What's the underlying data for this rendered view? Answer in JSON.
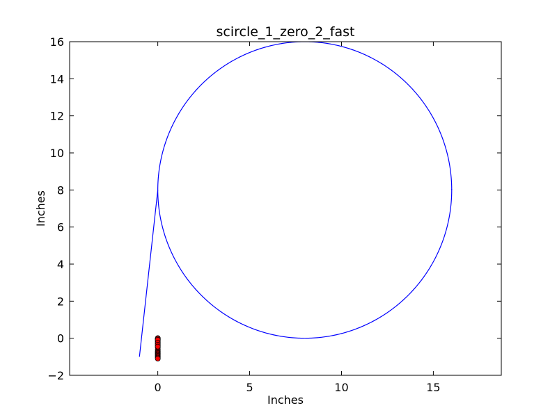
{
  "chart_data": {
    "type": "line",
    "title": "scircle_1_zero_2_fast",
    "xlabel": "Inches",
    "ylabel": "Inches",
    "xlim": [
      -4.8,
      18.7
    ],
    "ylim": [
      -2,
      16
    ],
    "grid": false,
    "x_ticks": [
      0,
      5,
      10,
      15
    ],
    "x_tick_labels": [
      "0",
      "5",
      "10",
      "15"
    ],
    "y_ticks": [
      -2,
      0,
      2,
      4,
      6,
      8,
      10,
      12,
      14,
      16
    ],
    "y_tick_labels": [
      "−2",
      "0",
      "2",
      "4",
      "6",
      "8",
      "10",
      "12",
      "14",
      "16"
    ],
    "series": [
      {
        "kind": "line",
        "color": "#0000ff",
        "segments": [
          {
            "shape": "segment",
            "x": [
              -1,
              0
            ],
            "y": [
              -1,
              8
            ]
          },
          {
            "shape": "circle",
            "center": [
              8,
              8
            ],
            "radius": 8
          },
          {
            "shape": "segment",
            "x": [
              16,
              16
            ],
            "y": [
              8,
              8.05
            ]
          }
        ]
      },
      {
        "kind": "scatter",
        "color": "#ff0000",
        "edge_color": "#000000",
        "x": [
          0,
          0,
          0,
          0,
          0,
          0,
          0,
          0,
          0,
          0,
          0,
          0,
          0,
          0,
          0,
          0,
          0,
          0,
          0,
          0,
          0,
          0,
          0,
          0
        ],
        "y": [
          0.0,
          0.0,
          -0.05,
          -0.1,
          -0.15,
          -0.2,
          -0.3,
          -0.4,
          -0.5,
          -0.6,
          -0.7,
          -0.75,
          -0.8,
          -0.85,
          -0.9,
          -0.95,
          -1.0,
          -1.05,
          -1.1,
          -0.02,
          -0.08,
          -0.25,
          -0.35,
          -0.45
        ]
      }
    ]
  }
}
